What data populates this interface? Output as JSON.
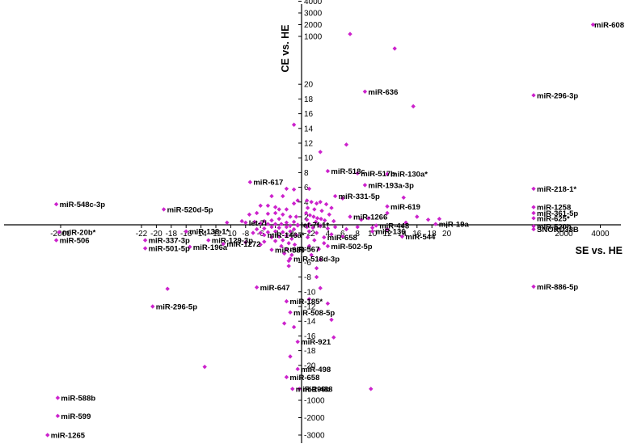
{
  "chart_data": {
    "type": "scatter",
    "xlabel": "SE vs. HE",
    "ylabel": "CE vs. HE",
    "x_axis": {
      "scale": "broken-linear",
      "inner_range": [
        -22,
        20
      ],
      "outer_range": [
        -2000,
        4000
      ],
      "ticks": [
        -2000,
        -22,
        -20,
        -18,
        -16,
        -14,
        -12,
        -10,
        -8,
        -6,
        -4,
        -2,
        2,
        4,
        6,
        8,
        10,
        12,
        14,
        16,
        18,
        20,
        2000,
        4000
      ],
      "tick_labels": [
        "-2000",
        "-22",
        "-20",
        "-18",
        "-16",
        "-14",
        "-12",
        "-10",
        "-8",
        "-6",
        "-4",
        "-2",
        "2",
        "4",
        "6",
        "8",
        "10",
        "12",
        "14",
        "16",
        "18",
        "20",
        "2000",
        "4000"
      ]
    },
    "y_axis": {
      "scale": "broken-linear",
      "inner_range": [
        -20,
        20
      ],
      "outer_range": [
        -3000,
        4000
      ],
      "ticks": [
        4000,
        3000,
        2000,
        1000,
        20,
        18,
        16,
        14,
        12,
        10,
        8,
        6,
        4,
        2,
        -2,
        -4,
        -6,
        -8,
        -10,
        -12,
        -14,
        -16,
        -18,
        -20,
        -1000,
        -2000,
        -3000
      ],
      "tick_labels": [
        "4000",
        "3000",
        "2000",
        "1000",
        "20",
        "18",
        "16",
        "14",
        "12",
        "10",
        "8",
        "6",
        "4",
        "2",
        "-2",
        "-4",
        "-6",
        "-8",
        "-10",
        "-12",
        "-14",
        "-16",
        "-18",
        "-20",
        "-1000",
        "-2000",
        "-3000"
      ]
    },
    "marker_color": "#cc22cc",
    "grid": false,
    "legend": "none",
    "labeled_points": [
      {
        "label": "miR-608",
        "x": 3600,
        "y": 2000
      },
      {
        "label": "miR-296-3p",
        "x": 700,
        "y": 18.5
      },
      {
        "label": "miR-636",
        "x": 9,
        "y": 19
      },
      {
        "label": "miR-518c",
        "x": 4,
        "y": 8.2
      },
      {
        "label": "miR-517b",
        "x": 8,
        "y": 7.9
      },
      {
        "label": "miR-130a*",
        "x": 12,
        "y": 7.8
      },
      {
        "label": "miR-193a-3p",
        "x": 9,
        "y": 6.3
      },
      {
        "label": "miR-331-5p",
        "x": 5,
        "y": 4.8
      },
      {
        "label": "miR-617",
        "x": -7.4,
        "y": 6.7
      },
      {
        "label": "miR-548c-3p",
        "x": -2300,
        "y": 3.7
      },
      {
        "label": "miR-520d-5p",
        "x": -19,
        "y": 3
      },
      {
        "label": "miR-619",
        "x": 12,
        "y": 3.4
      },
      {
        "label": "miR-218-1*",
        "x": 800,
        "y": 5.8
      },
      {
        "label": "miR-1258",
        "x": 800,
        "y": 3.3
      },
      {
        "label": "miR-361-5p",
        "x": 800,
        "y": 2.5
      },
      {
        "label": "miR-625*",
        "x": 800,
        "y": 1.8
      },
      {
        "label": "miR-520h",
        "x": 800,
        "y": 0.7
      },
      {
        "label": "let-7i",
        "x": -8,
        "y": 1.2
      },
      {
        "label": "miR-1266",
        "x": 7,
        "y": 2
      },
      {
        "label": "miR-448",
        "x": 10.5,
        "y": 0.8
      },
      {
        "label": "miR-19a",
        "x": 18.5,
        "y": 1
      },
      {
        "label": "SNORD38B",
        "x": 800,
        "y": -1.5
      },
      {
        "label": "let-7f-1*",
        "x": -1,
        "y": -0.9
      },
      {
        "label": "miR-20b*",
        "x": -2100,
        "y": -1.9
      },
      {
        "label": "miR-506",
        "x": -2300,
        "y": -3
      },
      {
        "label": "miR-337-3p",
        "x": -21.5,
        "y": -3
      },
      {
        "label": "miR-501-5p",
        "x": -21.5,
        "y": -4.1
      },
      {
        "label": "miR-138-1*",
        "x": -16,
        "y": -1.8
      },
      {
        "label": "miR-129-3p",
        "x": -13,
        "y": -3
      },
      {
        "label": "miR-196a",
        "x": -15.5,
        "y": -3.9
      },
      {
        "label": "miR-1272",
        "x": -11,
        "y": -3.5
      },
      {
        "label": "miR-146a*",
        "x": -5.5,
        "y": -2.3
      },
      {
        "label": "miR-580",
        "x": -4.5,
        "y": -4.3
      },
      {
        "label": "miR-567",
        "x": -2.5,
        "y": -4.2
      },
      {
        "label": "miR-518d-3p",
        "x": -2,
        "y": -5.5
      },
      {
        "label": "miR-658",
        "x": 3.5,
        "y": -2.6
      },
      {
        "label": "miR-502-5p",
        "x": 4,
        "y": -3.8
      },
      {
        "label": "miR-136",
        "x": 10,
        "y": -1.8
      },
      {
        "label": "miR-544",
        "x": 14,
        "y": -2.5
      },
      {
        "label": "miR-647",
        "x": -6.5,
        "y": -9.4
      },
      {
        "label": "miR-185*",
        "x": -2.5,
        "y": -11.3
      },
      {
        "label": "miR-886-5p",
        "x": 700,
        "y": -9.3
      },
      {
        "label": "miR-296-5p",
        "x": -20.5,
        "y": -12
      },
      {
        "label": "miR-508-5p",
        "x": -2,
        "y": -12.8
      },
      {
        "label": "miR-921",
        "x": -1,
        "y": -16.8
      },
      {
        "label": "miR-658",
        "x": -2.5,
        "y": -21.6
      },
      {
        "label": "miR-498",
        "x": -1,
        "y": -20.5
      },
      {
        "label": "miR-196b",
        "x": -1.7,
        "y": -23.2
      },
      {
        "label": "miR-488",
        "x": 0.2,
        "y": -23.2
      },
      {
        "label": "miR-588b",
        "x": -2200,
        "y": -800
      },
      {
        "label": "miR-599",
        "x": -2200,
        "y": -1900
      },
      {
        "label": "miR-1265",
        "x": -2900,
        "y": -3000
      }
    ],
    "points": [
      {
        "x": -1.5,
        "y": 14.5
      },
      {
        "x": 7,
        "y": 1200
      },
      {
        "x": 13,
        "y": 400
      },
      {
        "x": 15.5,
        "y": 17
      },
      {
        "x": 6.5,
        "y": 11.8
      },
      {
        "x": 3,
        "y": 10.8
      },
      {
        "x": -2.5,
        "y": 5.8
      },
      {
        "x": -1.5,
        "y": 5.7
      },
      {
        "x": -1,
        "y": 4.2
      },
      {
        "x": -3,
        "y": 4.8
      },
      {
        "x": -4.5,
        "y": 4.8
      },
      {
        "x": -1.5,
        "y": 3.8
      },
      {
        "x": -6,
        "y": 3.5
      },
      {
        "x": -5,
        "y": 3.5
      },
      {
        "x": -4,
        "y": 3.3
      },
      {
        "x": -3.5,
        "y": 3
      },
      {
        "x": -2.5,
        "y": 3
      },
      {
        "x": -4,
        "y": 2.5
      },
      {
        "x": -5,
        "y": 2.4
      },
      {
        "x": -6.5,
        "y": 2.5
      },
      {
        "x": -7.5,
        "y": 2.3
      },
      {
        "x": -3,
        "y": 2.3
      },
      {
        "x": -2,
        "y": 2
      },
      {
        "x": -1.2,
        "y": 2
      },
      {
        "x": -3.5,
        "y": 1.7
      },
      {
        "x": -4.5,
        "y": 1.5
      },
      {
        "x": -5.5,
        "y": 1.4
      },
      {
        "x": -6.8,
        "y": 1.3
      },
      {
        "x": -1.5,
        "y": 1.3
      },
      {
        "x": -2.5,
        "y": 1.2
      },
      {
        "x": -3.2,
        "y": 1
      },
      {
        "x": -4,
        "y": 1
      },
      {
        "x": -5,
        "y": 1
      },
      {
        "x": -6,
        "y": 1.1
      },
      {
        "x": -8.5,
        "y": 1.4
      },
      {
        "x": -10.5,
        "y": 1.2
      },
      {
        "x": -1,
        "y": 0.8
      },
      {
        "x": -2,
        "y": 0.8
      },
      {
        "x": 1.5,
        "y": 5.8
      },
      {
        "x": 1.2,
        "y": 4.2
      },
      {
        "x": 1.8,
        "y": 4
      },
      {
        "x": 2.5,
        "y": 3.8
      },
      {
        "x": 3,
        "y": 4
      },
      {
        "x": 3.8,
        "y": 3.7
      },
      {
        "x": 4.5,
        "y": 3.2
      },
      {
        "x": 1.3,
        "y": 3.2
      },
      {
        "x": 2.2,
        "y": 3
      },
      {
        "x": 3.2,
        "y": 2.8
      },
      {
        "x": 4.2,
        "y": 2.3
      },
      {
        "x": 1.1,
        "y": 2.5
      },
      {
        "x": 1.6,
        "y": 2.2
      },
      {
        "x": 2.1,
        "y": 2
      },
      {
        "x": 2.6,
        "y": 1.8
      },
      {
        "x": 3.1,
        "y": 1.7
      },
      {
        "x": 3.6,
        "y": 1.5
      },
      {
        "x": 1.2,
        "y": 1.6
      },
      {
        "x": 2.4,
        "y": 1.3
      },
      {
        "x": 4.8,
        "y": 1.4
      },
      {
        "x": 1.5,
        "y": 1
      },
      {
        "x": 3,
        "y": 0.8
      },
      {
        "x": 6,
        "y": 4.5
      },
      {
        "x": 14.2,
        "y": 4.6
      },
      {
        "x": 16,
        "y": 2
      },
      {
        "x": 17.5,
        "y": 1.6
      },
      {
        "x": 19,
        "y": 1.7
      },
      {
        "x": 12,
        "y": 2.5
      },
      {
        "x": 8.5,
        "y": 1.6
      },
      {
        "x": 9.5,
        "y": 1.8
      },
      {
        "x": 14.5,
        "y": 1.2
      },
      {
        "x": -2.5,
        "y": -1.2
      },
      {
        "x": -3.5,
        "y": -1.3
      },
      {
        "x": -4.5,
        "y": -1.2
      },
      {
        "x": -5.5,
        "y": -1.4
      },
      {
        "x": -6.5,
        "y": -1.5
      },
      {
        "x": -1.5,
        "y": -1.5
      },
      {
        "x": -2,
        "y": -1.8
      },
      {
        "x": -3,
        "y": -1.9
      },
      {
        "x": -4,
        "y": -1.8
      },
      {
        "x": -5,
        "y": -1.9
      },
      {
        "x": -6,
        "y": -2
      },
      {
        "x": -7,
        "y": -2
      },
      {
        "x": -1.2,
        "y": -2.3
      },
      {
        "x": -2.5,
        "y": -2.4
      },
      {
        "x": -3.5,
        "y": -2.5
      },
      {
        "x": -4.5,
        "y": -2.6
      },
      {
        "x": -1.8,
        "y": -2.8
      },
      {
        "x": -3,
        "y": -3
      },
      {
        "x": -4,
        "y": -3.1
      },
      {
        "x": -5.5,
        "y": -3.2
      },
      {
        "x": -2.2,
        "y": -3.4
      },
      {
        "x": -1.4,
        "y": -3.6
      },
      {
        "x": -3.2,
        "y": -3.8
      },
      {
        "x": -6,
        "y": -3.6
      },
      {
        "x": -8,
        "y": -3.3
      },
      {
        "x": -2.8,
        "y": -4.8
      },
      {
        "x": -1.8,
        "y": -5
      },
      {
        "x": -2.2,
        "y": -5.8
      },
      {
        "x": -2.2,
        "y": -6.5
      },
      {
        "x": 1.2,
        "y": -1.2
      },
      {
        "x": 2,
        "y": -1.3
      },
      {
        "x": 3,
        "y": -1.1
      },
      {
        "x": 4,
        "y": -1.4
      },
      {
        "x": 5,
        "y": -1.2
      },
      {
        "x": 6.5,
        "y": -1.5
      },
      {
        "x": 1.5,
        "y": -1.8
      },
      {
        "x": 2.5,
        "y": -2
      },
      {
        "x": 4.5,
        "y": -2.2
      },
      {
        "x": 1.3,
        "y": -2.6
      },
      {
        "x": 2.2,
        "y": -3
      },
      {
        "x": 3.5,
        "y": -3.4
      },
      {
        "x": 1.5,
        "y": -3.8
      },
      {
        "x": 2.8,
        "y": -4.2
      },
      {
        "x": 1.8,
        "y": -5
      },
      {
        "x": 3,
        "y": -5.6
      },
      {
        "x": 2.5,
        "y": -6.8
      },
      {
        "x": 2.5,
        "y": -8
      },
      {
        "x": 3,
        "y": -9.5
      },
      {
        "x": 10,
        "y": -1.3
      },
      {
        "x": 12,
        "y": -1.5
      },
      {
        "x": 8,
        "y": -1.2
      },
      {
        "x": 6,
        "y": -2.5
      },
      {
        "x": 1.5,
        "y": -11
      },
      {
        "x": 4,
        "y": -11.6
      },
      {
        "x": -1.5,
        "y": -14.8
      },
      {
        "x": 4.5,
        "y": -13.8
      },
      {
        "x": 4.8,
        "y": -16.2
      },
      {
        "x": -2.8,
        "y": -14.3
      },
      {
        "x": -2,
        "y": -18.8
      },
      {
        "x": -18.5,
        "y": -9.6
      },
      {
        "x": -13.5,
        "y": -20.2
      },
      {
        "x": 9.8,
        "y": -23.2
      }
    ]
  }
}
